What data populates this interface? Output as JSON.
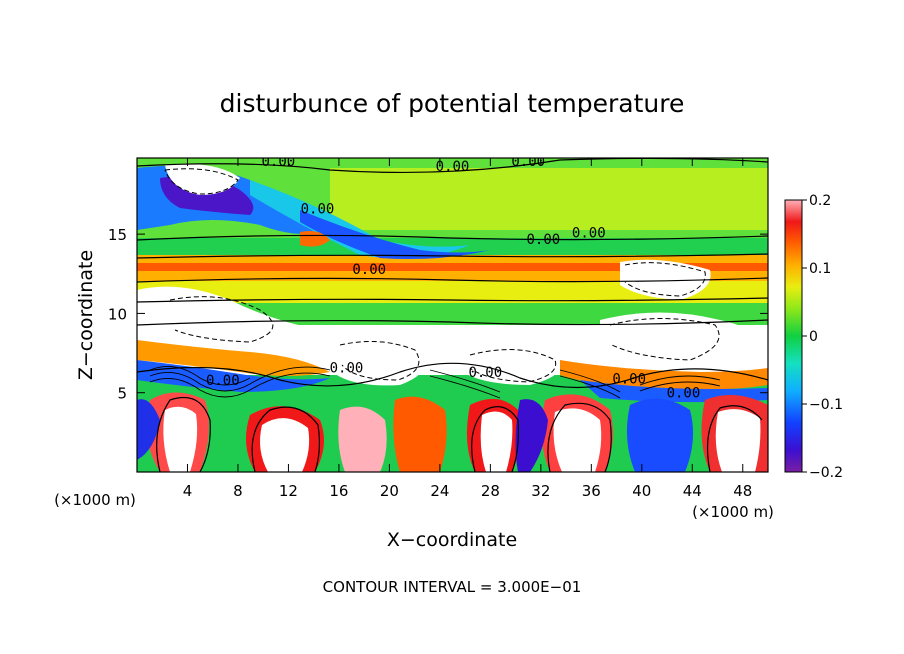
{
  "chart_data": {
    "type": "heatmap",
    "title": "disturbunce of potential temperature",
    "xlabel": "X−coordinate",
    "ylabel": "Z−coordinate",
    "x_unit_left": "(×1000 m)",
    "x_unit_right": "(×1000 m)",
    "footer": "CONTOUR INTERVAL = 3.000E−01",
    "xlim": [
      0,
      50
    ],
    "ylim": [
      0,
      19.8
    ],
    "xticks": [
      4,
      8,
      12,
      16,
      20,
      24,
      28,
      32,
      36,
      40,
      44,
      48
    ],
    "xtick_labels": [
      "4",
      "8",
      "12",
      "16",
      "20",
      "24",
      "28",
      "32",
      "36",
      "40",
      "44",
      "48"
    ],
    "yticks": [
      5,
      10,
      15
    ],
    "ytick_labels": [
      "5",
      "10",
      "15"
    ],
    "colorbar": {
      "min": -0.2,
      "max": 0.2,
      "ticks": [
        0.2,
        0.1,
        0,
        -0.1,
        -0.2
      ],
      "tick_labels": [
        "0.2",
        "0.1",
        "0",
        "−0.1",
        "−0.2"
      ]
    },
    "contour_labels": [
      {
        "text": "0.00",
        "x": 11.2,
        "z": 19.6
      },
      {
        "text": "0.00",
        "x": 25.0,
        "z": 19.3
      },
      {
        "text": "0.00",
        "x": 31.0,
        "z": 19.6
      },
      {
        "text": "0.00",
        "x": 14.3,
        "z": 16.6
      },
      {
        "text": "0.00",
        "x": 32.2,
        "z": 14.7
      },
      {
        "text": "0.00",
        "x": 35.8,
        "z": 15.1
      },
      {
        "text": "0.00",
        "x": 18.4,
        "z": 12.8
      },
      {
        "text": "0.00",
        "x": 16.6,
        "z": 6.6
      },
      {
        "text": "0.00",
        "x": 27.6,
        "z": 6.3
      },
      {
        "text": "0.00",
        "x": 39.0,
        "z": 5.9
      },
      {
        "text": "0.00",
        "x": 43.3,
        "z": 5.0
      },
      {
        "text": "0.00",
        "x": 6.8,
        "z": 5.8
      }
    ]
  }
}
